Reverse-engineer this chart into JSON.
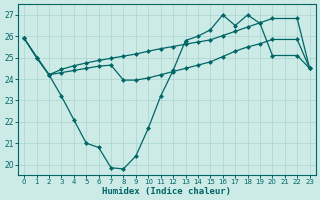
{
  "background_color": "#cceae6",
  "line_color": "#006666",
  "grid_color": "#aad4d0",
  "xlabel": "Humidex (Indice chaleur)",
  "xlim": [
    -0.5,
    23.5
  ],
  "ylim": [
    19.5,
    27.5
  ],
  "xticks": [
    0,
    1,
    2,
    3,
    4,
    5,
    6,
    7,
    8,
    9,
    10,
    11,
    12,
    13,
    14,
    15,
    16,
    17,
    18,
    19,
    20,
    21,
    22,
    23
  ],
  "yticks": [
    20,
    21,
    22,
    23,
    24,
    25,
    26,
    27
  ],
  "line_zigzag_x": [
    0,
    1,
    2,
    3,
    4,
    5,
    6,
    7,
    8,
    9,
    10,
    11,
    12,
    13,
    14,
    15,
    16,
    17,
    18,
    19,
    20,
    22,
    23
  ],
  "line_zigzag_y": [
    25.9,
    25.0,
    24.2,
    23.2,
    22.1,
    21.0,
    20.8,
    19.85,
    19.8,
    20.4,
    21.7,
    23.2,
    24.4,
    25.8,
    26.0,
    26.3,
    27.0,
    26.5,
    27.0,
    26.6,
    25.1,
    25.1,
    24.5
  ],
  "line_mid_x": [
    0,
    1,
    2,
    3,
    4,
    5,
    6,
    7,
    8,
    9,
    10,
    11,
    12,
    13,
    14,
    15,
    16,
    17,
    18,
    19,
    20,
    22,
    23
  ],
  "line_mid_y": [
    25.9,
    25.0,
    24.2,
    24.3,
    24.4,
    24.5,
    24.6,
    24.65,
    23.95,
    23.95,
    24.05,
    24.2,
    24.35,
    24.5,
    24.65,
    24.8,
    25.05,
    25.3,
    25.5,
    25.65,
    25.85,
    25.85,
    24.5
  ],
  "line_top_x": [
    0,
    2,
    3,
    4,
    5,
    6,
    7,
    8,
    9,
    10,
    11,
    12,
    13,
    14,
    15,
    16,
    17,
    18,
    19,
    20,
    22,
    23
  ],
  "line_top_y": [
    25.9,
    24.2,
    24.45,
    24.62,
    24.75,
    24.87,
    24.97,
    25.07,
    25.17,
    25.3,
    25.42,
    25.52,
    25.63,
    25.73,
    25.83,
    26.03,
    26.23,
    26.43,
    26.63,
    26.83,
    26.83,
    24.5
  ]
}
